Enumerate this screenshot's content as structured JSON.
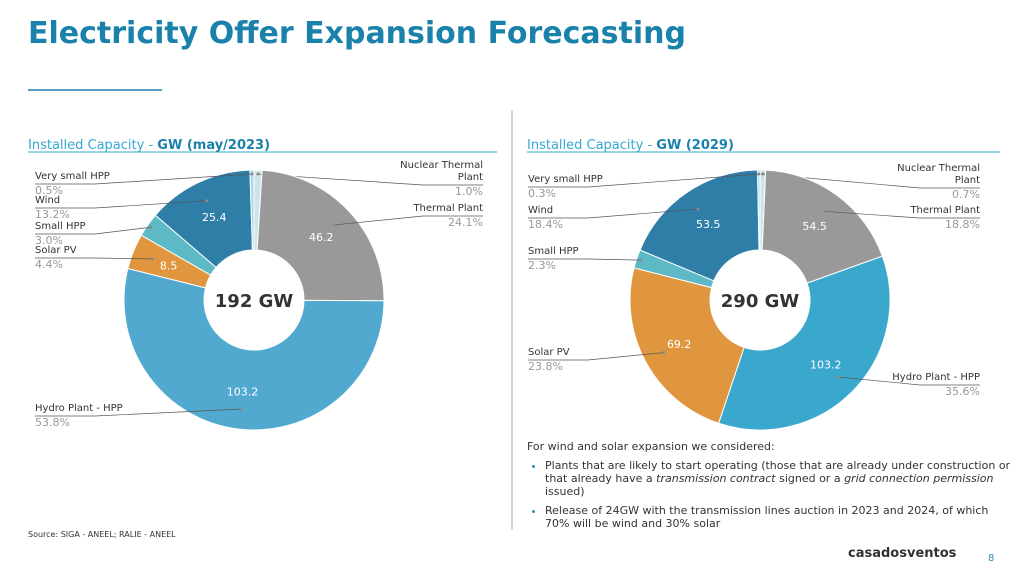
{
  "header": {
    "title": "Electricity Offer Expansion Forecasting"
  },
  "chart_data": [
    {
      "type": "donut",
      "title": "Installed Capacity -",
      "title_emphasis": "GW (may/2023)",
      "center_label": "192 GW",
      "categories": [
        "Nuclear Thermal Plant",
        "Thermal Plant",
        "Hydro Plant - HPP",
        "Solar PV",
        "Small HPP",
        "Wind",
        "Very small HPP"
      ],
      "shares": [
        1.0,
        24.1,
        53.8,
        4.4,
        3.0,
        13.2,
        0.5
      ],
      "share_labels": [
        "1.0%",
        "24.1%",
        "53.8%",
        "4.4%",
        "3.0%",
        "13.2%",
        "0.5%"
      ],
      "values": [
        null,
        46.2,
        103.2,
        8.5,
        null,
        25.4,
        null
      ],
      "colors": [
        "#cfe3ea",
        "#999999",
        "#51a9cf",
        "#e0963f",
        "#5cb9c5",
        "#2f7ea8",
        "#a9dbe7"
      ]
    },
    {
      "type": "donut",
      "title": "Installed Capacity -",
      "title_emphasis": "GW (2029)",
      "center_label": "290 GW",
      "categories": [
        "Nuclear Thermal Plant",
        "Thermal Plant",
        "Hydro Plant - HPP",
        "Solar PV",
        "Small HPP",
        "Wind",
        "Very small HPP"
      ],
      "shares": [
        0.7,
        18.8,
        35.6,
        23.8,
        2.3,
        18.4,
        0.3
      ],
      "share_labels": [
        "0.7%",
        "18.8%",
        "35.6%",
        "23.8%",
        "2.3%",
        "18.4%",
        "0.3%"
      ],
      "values": [
        null,
        54.5,
        103.2,
        69.2,
        null,
        53.5,
        null
      ],
      "colors": [
        "#cfe3ea",
        "#999999",
        "#3aa8cd",
        "#e0963f",
        "#5cb9c5",
        "#2f7ea8",
        "#a9dbe7"
      ]
    }
  ],
  "notes": {
    "intro": "For wind and solar expansion we considered:",
    "bullets": [
      [
        "Plants that are likely to start operating (those that are already under construction or that already have a ",
        "transmission contract",
        " signed or a ",
        "grid connection permission",
        " issued)"
      ],
      [
        "Release of 24GW with the transmission lines auction in 2023 and 2024, of which 70% will be wind and 30% solar"
      ]
    ]
  },
  "footer": {
    "source": "Source: SIGA - ANEEL; RALIE - ANEEL",
    "logo": "casadosventos",
    "page_number": "8"
  }
}
